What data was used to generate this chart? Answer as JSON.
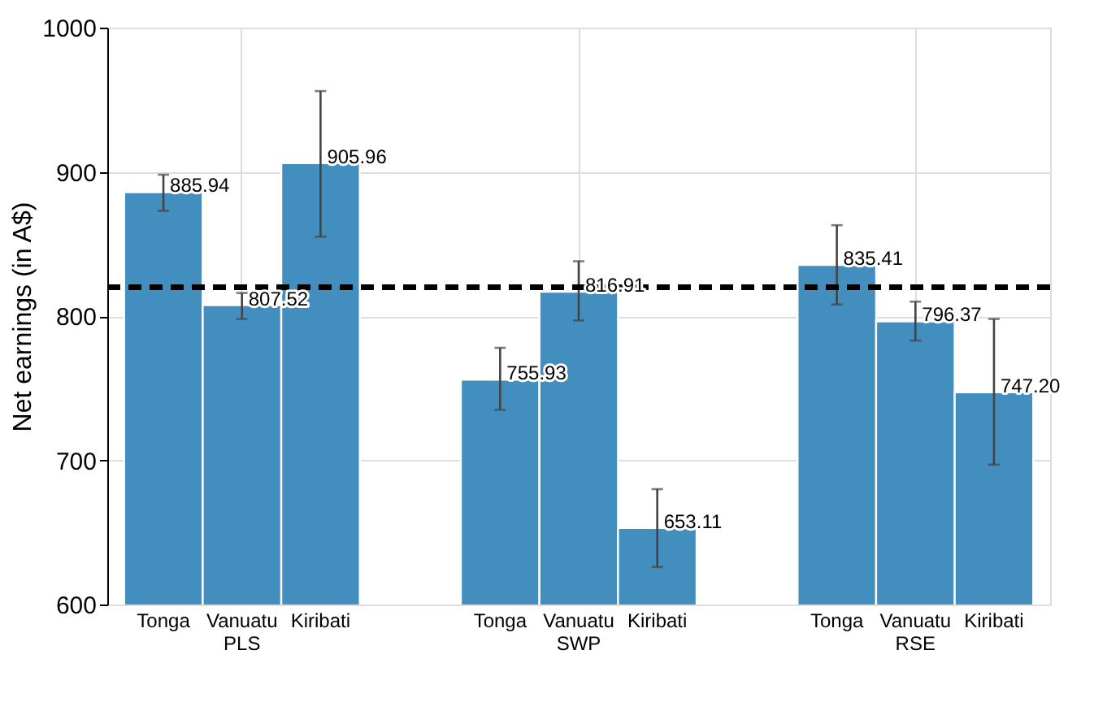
{
  "chart_data": {
    "type": "bar",
    "ylabel": "Net earnings (in A$)",
    "categories": [
      "PLS",
      "SWP",
      "RSE"
    ],
    "series": [
      {
        "name": "Tonga",
        "color": "#428ebe",
        "values": [
          885.94,
          755.93,
          835.41
        ],
        "value_labels": [
          "885.94",
          "755.93",
          "835.41"
        ],
        "errors": [
          [
            873,
            898
          ],
          [
            735,
            778
          ],
          [
            808,
            863
          ]
        ]
      },
      {
        "name": "Vanuatu",
        "color": "#428ebe",
        "values": [
          807.52,
          816.91,
          796.37
        ],
        "value_labels": [
          "807.52",
          "816.91",
          "796.37"
        ],
        "errors": [
          [
            798,
            816
          ],
          [
            797,
            838
          ],
          [
            783,
            810
          ]
        ]
      },
      {
        "name": "Kiribati",
        "color": "#428ebe",
        "values": [
          905.96,
          653.11,
          747.2
        ],
        "value_labels": [
          "905.96",
          "653.11",
          "747.20"
        ],
        "errors": [
          [
            855,
            956
          ],
          [
            626,
            680
          ],
          [
            697,
            798
          ]
        ]
      }
    ],
    "ylim": [
      600,
      1000
    ],
    "yticks": [
      600,
      700,
      800,
      900,
      1000
    ],
    "ref_lines": [
      {
        "axis": "y",
        "value": 820,
        "color": "#000000",
        "line_style": "dashed"
      }
    ],
    "grid": true,
    "legend": false
  }
}
